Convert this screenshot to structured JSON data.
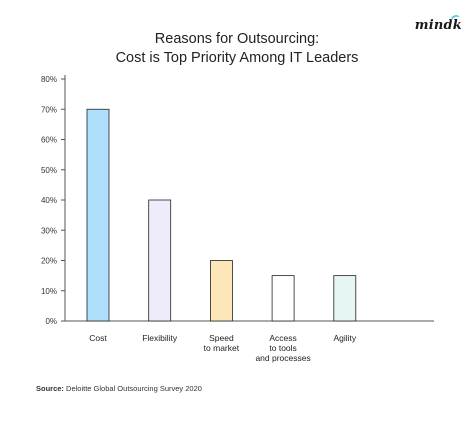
{
  "header": {
    "title_line1": "Reasons for Outsourcing:",
    "title_line2": "Cost is Top Priority Among IT Leaders",
    "logo_text": "mindk"
  },
  "footer": {
    "source_label": "Source:",
    "source_text": "Deloitte Global Outsourcing Survey 2020"
  },
  "chart_data": {
    "type": "bar",
    "title": "Reasons for Outsourcing: Cost is Top Priority Among IT Leaders",
    "categories": [
      "Cost",
      "Flexibility",
      "Speed\nto market",
      "Access\nto tools\nand processes",
      "Agility"
    ],
    "values": [
      70,
      40,
      20,
      15,
      15
    ],
    "ylim": [
      0,
      80
    ],
    "yticks": [
      0,
      10,
      20,
      30,
      40,
      50,
      60,
      70,
      80
    ],
    "ytick_labels": [
      "0%",
      "10%",
      "20%",
      "30%",
      "40%",
      "50%",
      "60%",
      "70%",
      "80%"
    ],
    "grid": false,
    "colors": {
      "fills": [
        "#aee0fb",
        "#eeebfa",
        "#fde6b8",
        "#ffffff",
        "#e6f6f4"
      ],
      "axis": "#555555"
    }
  }
}
